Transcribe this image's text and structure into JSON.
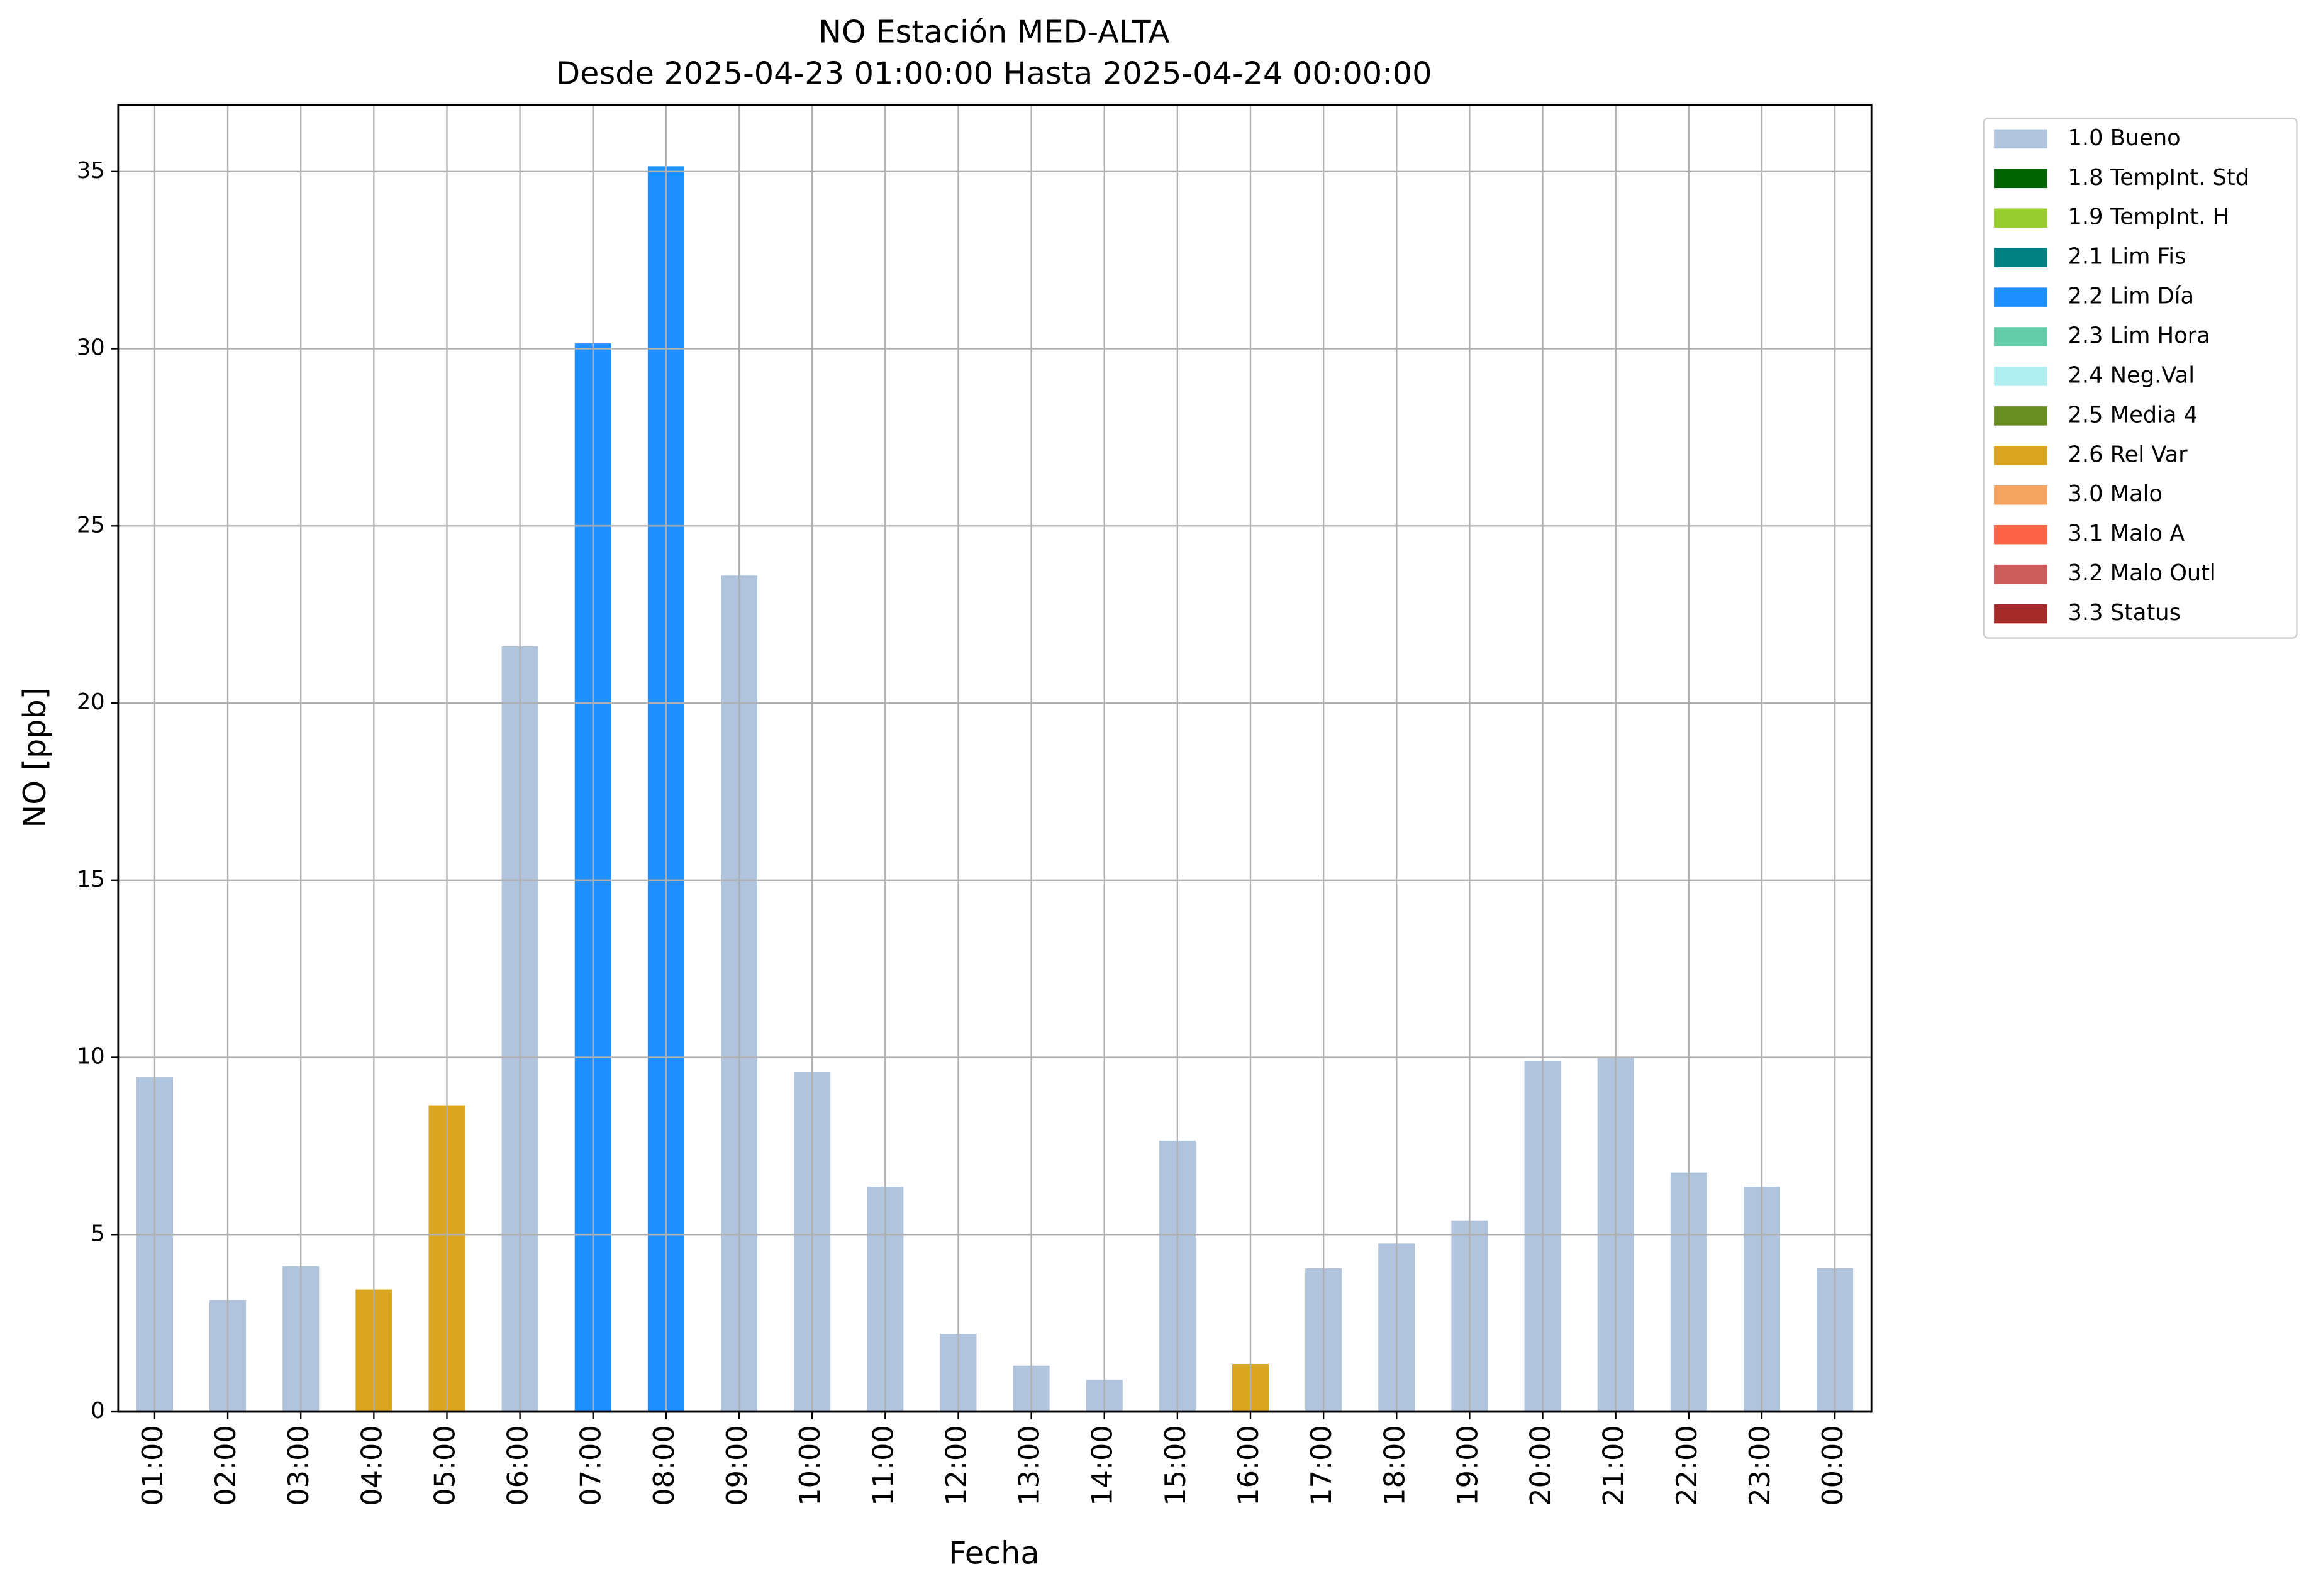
{
  "chart_data": {
    "type": "stacked_bar",
    "title": "NO Estación MED-ALTA",
    "subtitle": "Desde 2025-04-23 01:00:00 Hasta 2025-04-24 00:00:00",
    "x_label": "Fecha",
    "y_label": "NO [ppb]",
    "categories": [
      "01:00",
      "02:00",
      "03:00",
      "04:00",
      "05:00",
      "06:00",
      "07:00",
      "08:00",
      "09:00",
      "10:00",
      "11:00",
      "12:00",
      "13:00",
      "14:00",
      "15:00",
      "16:00",
      "17:00",
      "18:00",
      "19:00",
      "20:00",
      "21:00",
      "22:00",
      "23:00",
      "00:00"
    ],
    "series": [
      {
        "name": "1.0 Bueno",
        "color": "#b0c4de",
        "values": [
          9.45,
          3.15,
          4.1,
          null,
          null,
          21.6,
          null,
          null,
          23.6,
          9.6,
          6.35,
          2.2,
          1.3,
          0.9,
          7.65,
          null,
          4.05,
          4.75,
          5.4,
          9.9,
          10.0,
          6.75,
          6.35,
          4.05
        ]
      },
      {
        "name": "1.8 TempInt. Std",
        "color": "#006400",
        "values": [
          null,
          null,
          null,
          null,
          null,
          null,
          null,
          null,
          null,
          null,
          null,
          null,
          null,
          null,
          null,
          null,
          null,
          null,
          null,
          null,
          null,
          null,
          null,
          null
        ]
      },
      {
        "name": "1.9 TempInt. H",
        "color": "#9acd32",
        "values": [
          null,
          null,
          null,
          null,
          null,
          null,
          null,
          null,
          null,
          null,
          null,
          null,
          null,
          null,
          null,
          null,
          null,
          null,
          null,
          null,
          null,
          null,
          null,
          null
        ]
      },
      {
        "name": "2.1 Lim Fis",
        "color": "#008080",
        "values": [
          null,
          null,
          null,
          null,
          null,
          null,
          null,
          null,
          null,
          null,
          null,
          null,
          null,
          null,
          null,
          null,
          null,
          null,
          null,
          null,
          null,
          null,
          null,
          null
        ]
      },
      {
        "name": "2.2 Lim Día",
        "color": "#1e90ff",
        "values": [
          null,
          null,
          null,
          null,
          null,
          null,
          30.15,
          35.15,
          null,
          null,
          null,
          null,
          null,
          null,
          null,
          null,
          null,
          null,
          null,
          null,
          null,
          null,
          null,
          null
        ]
      },
      {
        "name": "2.3 Lim Hora",
        "color": "#66cdaa",
        "values": [
          null,
          null,
          null,
          null,
          null,
          null,
          null,
          null,
          null,
          null,
          null,
          null,
          null,
          null,
          null,
          null,
          null,
          null,
          null,
          null,
          null,
          null,
          null,
          null
        ]
      },
      {
        "name": "2.4 Neg.Val",
        "color": "#afeeee",
        "values": [
          null,
          null,
          null,
          null,
          null,
          null,
          null,
          null,
          null,
          null,
          null,
          null,
          null,
          null,
          null,
          null,
          null,
          null,
          null,
          null,
          null,
          null,
          null,
          null
        ]
      },
      {
        "name": "2.5 Media 4",
        "color": "#6b8e23",
        "values": [
          null,
          null,
          null,
          null,
          null,
          null,
          null,
          null,
          null,
          null,
          null,
          null,
          null,
          null,
          null,
          null,
          null,
          null,
          null,
          null,
          null,
          null,
          null,
          null
        ]
      },
      {
        "name": "2.6 Rel Var",
        "color": "#daa520",
        "values": [
          null,
          null,
          null,
          3.45,
          8.65,
          null,
          null,
          null,
          null,
          null,
          null,
          null,
          null,
          null,
          null,
          1.35,
          null,
          null,
          null,
          null,
          null,
          null,
          null,
          null
        ]
      },
      {
        "name": "3.0 Malo",
        "color": "#f4a460",
        "values": [
          null,
          null,
          null,
          null,
          null,
          null,
          null,
          null,
          null,
          null,
          null,
          null,
          null,
          null,
          null,
          null,
          null,
          null,
          null,
          null,
          null,
          null,
          null,
          null
        ]
      },
      {
        "name": "3.1 Malo A",
        "color": "#ff6347",
        "values": [
          null,
          null,
          null,
          null,
          null,
          null,
          null,
          null,
          null,
          null,
          null,
          null,
          null,
          null,
          null,
          null,
          null,
          null,
          null,
          null,
          null,
          null,
          null,
          null
        ]
      },
      {
        "name": "3.2 Malo Outl",
        "color": "#cd5c5c",
        "values": [
          null,
          null,
          null,
          null,
          null,
          null,
          null,
          null,
          null,
          null,
          null,
          null,
          null,
          null,
          null,
          null,
          null,
          null,
          null,
          null,
          null,
          null,
          null,
          null
        ]
      },
      {
        "name": "3.3 Status",
        "color": "#a52a2a",
        "values": [
          null,
          null,
          null,
          null,
          null,
          null,
          null,
          null,
          null,
          null,
          null,
          null,
          null,
          null,
          null,
          null,
          null,
          null,
          null,
          null,
          null,
          null,
          null,
          null
        ]
      }
    ],
    "ylim": [
      0,
      36.88
    ],
    "yticks": [
      0,
      5,
      10,
      15,
      20,
      25,
      30,
      35
    ],
    "grid": true,
    "legend": "outside right"
  }
}
